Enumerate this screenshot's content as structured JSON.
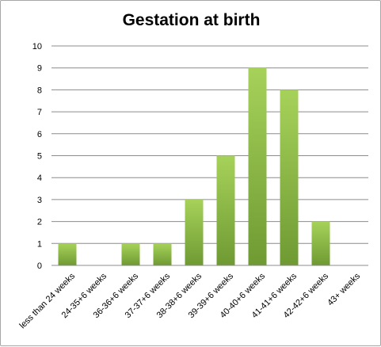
{
  "chart_data": {
    "type": "bar",
    "title": "Gestation at birth",
    "categories": [
      "less than 24 weeks",
      "24-35+6 weeks",
      "36-36+6 weeks",
      "37-37+6 weeks",
      "38-38+6 weeks",
      "39-39+6 weeks",
      "40-40+6 weeks",
      "41-41+6 weeks",
      "42-42+6 weeks",
      "43+ weeks"
    ],
    "values": [
      1,
      0,
      1,
      1,
      3,
      5,
      9,
      8,
      2,
      0
    ],
    "ylim": [
      0,
      10
    ],
    "yticks": [
      0,
      1,
      2,
      3,
      4,
      5,
      6,
      7,
      8,
      9,
      10
    ],
    "grid": true,
    "legend": "none",
    "bar_color_top": "#a6d25a",
    "bar_color_bottom": "#6f9a33",
    "gridline_color": "#8c8c8c"
  }
}
